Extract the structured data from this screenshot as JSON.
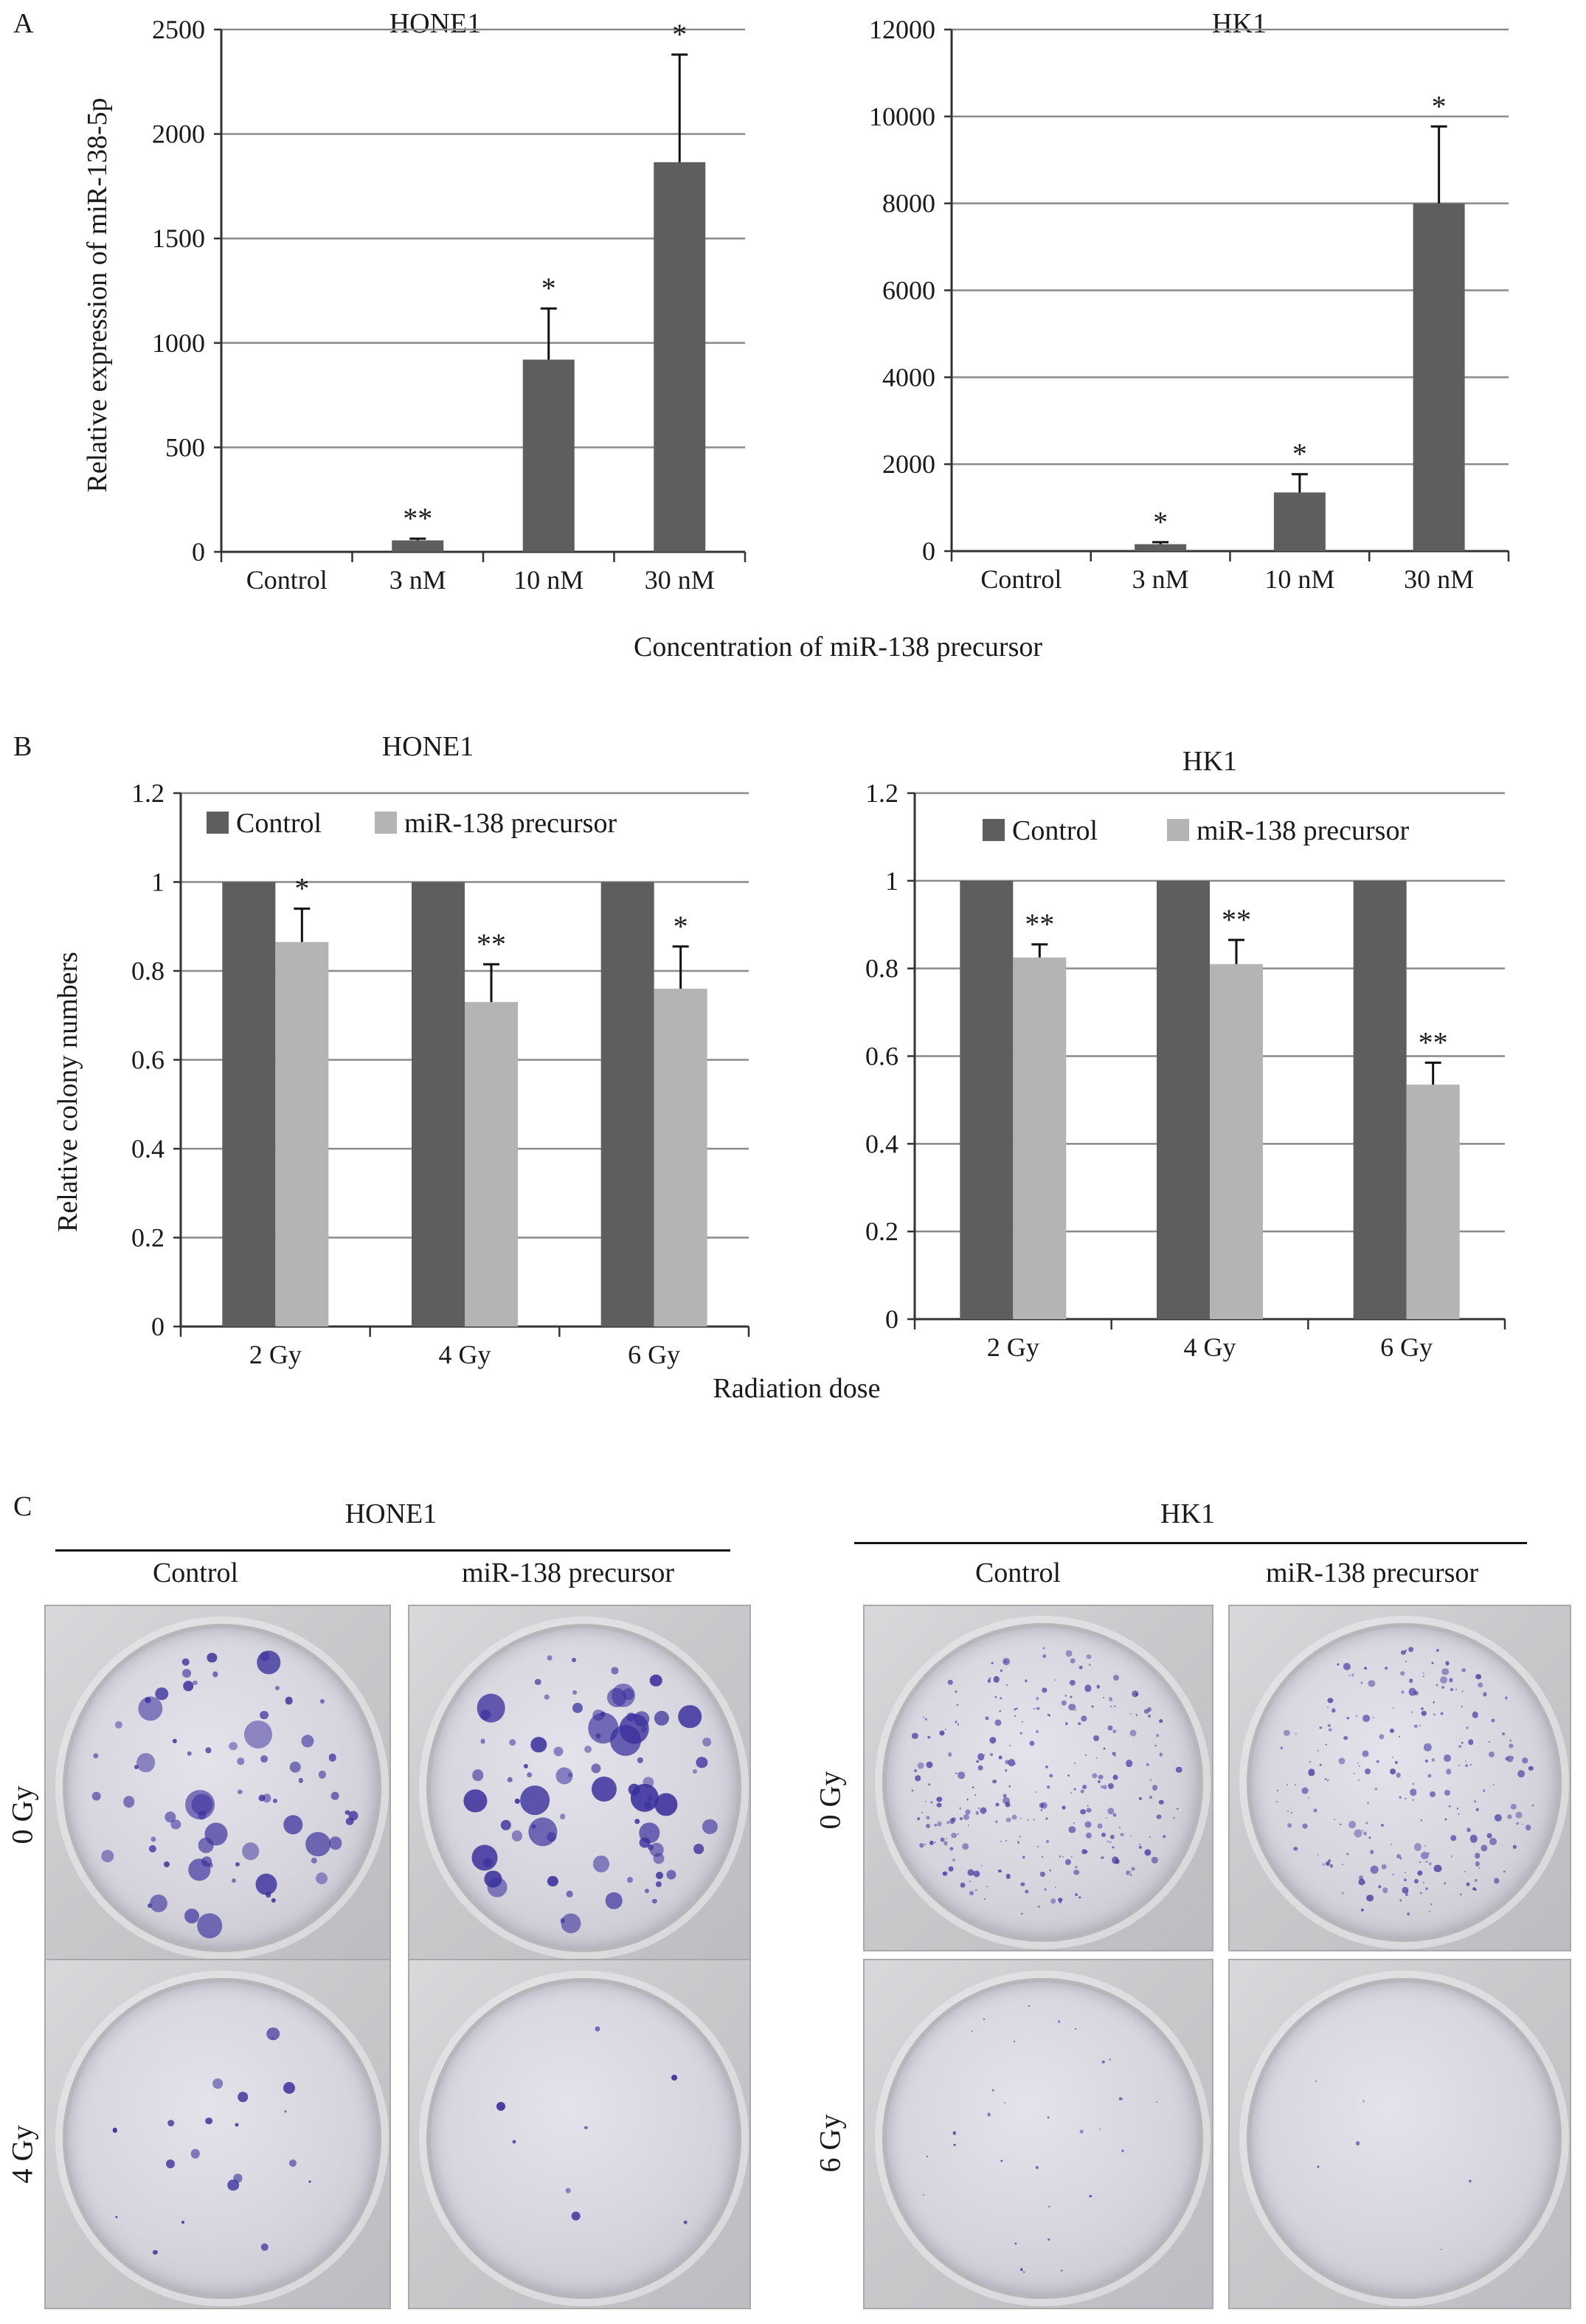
{
  "panel_letters": {
    "a": "A",
    "b": "B",
    "c": "C"
  },
  "panel_a": {
    "xlabel": "Concentration of miR-138 precursor",
    "ylabel": "Relative  expression of miR-138-5p"
  },
  "panel_b": {
    "xlabel": "Radiation dose",
    "ylabel": "Relative colony numbers"
  },
  "colors": {
    "dark_bar": "#5e5e5e",
    "light_bar": "#b4b4b4",
    "grid": "#8a8a8a",
    "stain": "#3a2f9c"
  },
  "chart_data": [
    {
      "id": "A-HONE1",
      "type": "bar",
      "title": "HONE1",
      "categories": [
        "Control",
        "3 nM",
        "10 nM",
        "30 nM"
      ],
      "series": [
        {
          "values": [
            0,
            55,
            920,
            1865
          ],
          "errors": [
            0,
            8,
            245,
            515
          ]
        }
      ],
      "annotations": [
        "",
        "**",
        "*",
        "*"
      ],
      "ylim": [
        0,
        2500
      ],
      "yticks": [
        0,
        500,
        1000,
        1500,
        2000,
        2500
      ],
      "ytick_labels": [
        "0",
        "500",
        "1000",
        "1500",
        "2000",
        "2500"
      ],
      "grid": true,
      "legend": "none"
    },
    {
      "id": "A-HK1",
      "type": "bar",
      "title": "HK1",
      "categories": [
        "Control",
        "3 nM",
        "10 nM",
        "30 nM"
      ],
      "series": [
        {
          "values": [
            0,
            160,
            1350,
            8000
          ],
          "errors": [
            0,
            45,
            420,
            1770
          ]
        }
      ],
      "annotations": [
        "",
        "*",
        "*",
        "*"
      ],
      "ylim": [
        0,
        12000
      ],
      "yticks": [
        0,
        2000,
        4000,
        6000,
        8000,
        10000,
        12000
      ],
      "ytick_labels": [
        "0",
        "2000",
        "4000",
        "6000",
        "8000",
        "10000",
        "12000"
      ],
      "grid": true,
      "legend": "none"
    },
    {
      "id": "B-HONE1",
      "type": "bar",
      "title": "HONE1",
      "categories": [
        "2 Gy",
        "4 Gy",
        "6 Gy"
      ],
      "series": [
        {
          "name": "Control",
          "values": [
            1,
            1,
            1
          ],
          "errors": [
            0,
            0,
            0
          ]
        },
        {
          "name": "miR-138 precursor",
          "values": [
            0.865,
            0.73,
            0.76
          ],
          "errors": [
            0.075,
            0.085,
            0.095
          ]
        }
      ],
      "annotations": [
        "*",
        "**",
        "*"
      ],
      "ylim": [
        0,
        1.2
      ],
      "yticks": [
        0,
        0.2,
        0.4,
        0.6,
        0.8,
        1,
        1.2
      ],
      "ytick_labels": [
        "0",
        "0.2",
        "0.4",
        "0.6",
        "0.8",
        "1",
        "1.2"
      ],
      "grid": true,
      "legend": "top"
    },
    {
      "id": "B-HK1",
      "type": "bar",
      "title": "HK1",
      "categories": [
        "2 Gy",
        "4 Gy",
        "6 Gy"
      ],
      "series": [
        {
          "name": "Control",
          "values": [
            1,
            1,
            1
          ],
          "errors": [
            0,
            0,
            0
          ]
        },
        {
          "name": "miR-138 precursor",
          "values": [
            0.825,
            0.81,
            0.535
          ],
          "errors": [
            0.03,
            0.055,
            0.05
          ]
        }
      ],
      "annotations": [
        "**",
        "**",
        "**"
      ],
      "ylim": [
        0,
        1.2
      ],
      "yticks": [
        0,
        0.2,
        0.4,
        0.6,
        0.8,
        1,
        1.2
      ],
      "ytick_labels": [
        "0",
        "0.2",
        "0.4",
        "0.6",
        "0.8",
        "1",
        "1.2"
      ],
      "grid": true,
      "legend": "top"
    }
  ],
  "panel_c": {
    "groups": [
      {
        "title": "HONE1",
        "columns": [
          "Control",
          "miR-138 precursor"
        ],
        "rows": [
          "0 Gy",
          "4 Gy"
        ]
      },
      {
        "title": "HK1",
        "columns": [
          "Control",
          "miR-138 precursor"
        ],
        "rows": [
          "0 Gy",
          "6 Gy"
        ]
      }
    ]
  }
}
